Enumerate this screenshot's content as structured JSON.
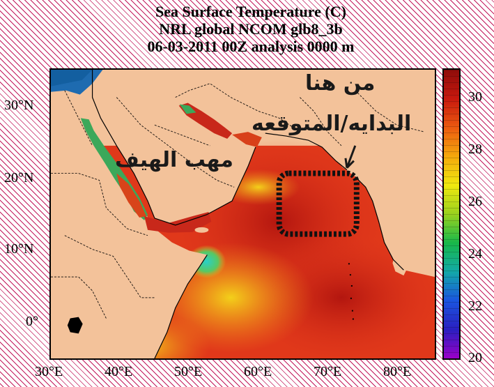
{
  "title": {
    "line1": "Sea Surface Temperature (C)",
    "line2": "NRL global NCOM glb8_3b",
    "line3": "06-03-2011 00Z analysis   0000 m"
  },
  "axes": {
    "lat_ticks": [
      "30°N",
      "20°N",
      "10°N",
      "0°"
    ],
    "lon_ticks": [
      "30°E",
      "40°E",
      "50°E",
      "60°E",
      "70°E",
      "80°E"
    ]
  },
  "colorbar": {
    "range": [
      20,
      31
    ],
    "ticks": [
      "30",
      "28",
      "26",
      "24",
      "22",
      "20"
    ],
    "colors": [
      "#9b00c8",
      "#2a1fc0",
      "#1a55e0",
      "#13a8a8",
      "#18b84a",
      "#9ad21e",
      "#f0e80f",
      "#f5a80c",
      "#ec5a10",
      "#c7180e",
      "#8e0c0a"
    ]
  },
  "annotations": {
    "wind_label": "مهب الهيف",
    "start_label_line1": "من هنا",
    "start_label_line2": "البدايه/المتوقعه"
  },
  "colors": {
    "land": "#f3c29a",
    "warm_sea": "#e0381a",
    "hot_sea": "#c01a12",
    "upwelling": "#f08a1a",
    "cold_upwelling": "#24c0a0",
    "med_sea": "#1e6bb0",
    "hatch": "#c2195b"
  }
}
